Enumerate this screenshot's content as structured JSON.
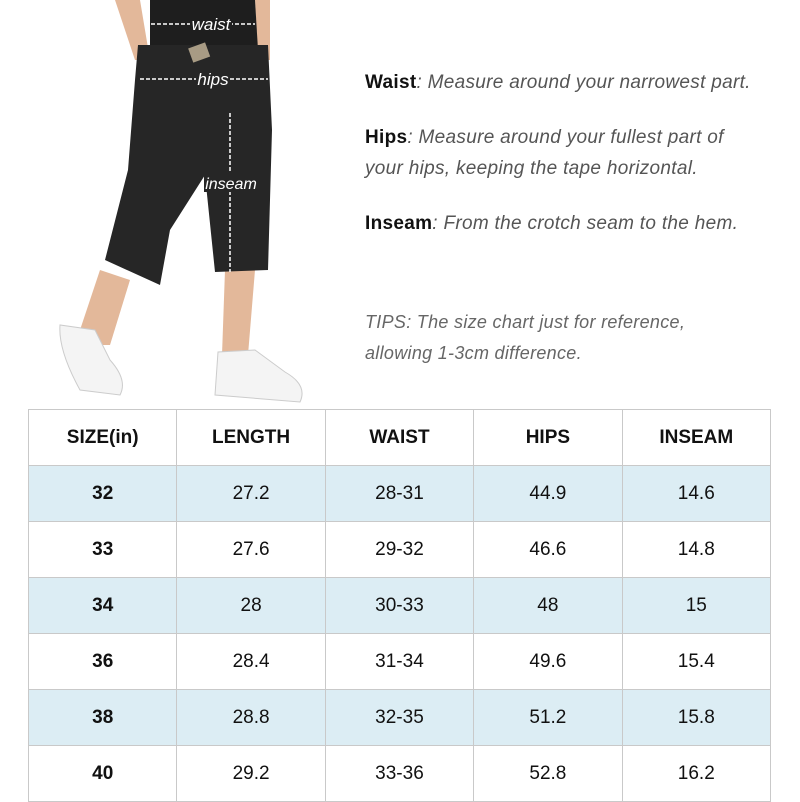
{
  "photo": {
    "labels": {
      "waist": "waist",
      "hips": "hips",
      "inseam": "inseam"
    }
  },
  "notes": [
    {
      "term": "Waist",
      "sep": ":",
      "text": " Measure around your narrowest part."
    },
    {
      "term": "Hips",
      "sep": ":",
      "text": " Measure around your fullest part of",
      "text2": "your hips, keeping the tape horizontal."
    },
    {
      "term": "Inseam",
      "sep": ":",
      "text": " From the crotch seam to the hem."
    }
  ],
  "tips": {
    "line1": "TIPS: The size chart just for reference,",
    "line2": "allowing 1-3cm difference."
  },
  "table": {
    "headers": [
      "SIZE(in)",
      "LENGTH",
      "WAIST",
      "HIPS",
      "INSEAM"
    ],
    "rows": [
      [
        "32",
        "27.2",
        "28-31",
        "44.9",
        "14.6"
      ],
      [
        "33",
        "27.6",
        "29-32",
        "46.6",
        "14.8"
      ],
      [
        "34",
        "28",
        "30-33",
        "48",
        "15"
      ],
      [
        "36",
        "28.4",
        "31-34",
        "49.6",
        "15.4"
      ],
      [
        "38",
        "28.8",
        "32-35",
        "51.2",
        "15.8"
      ],
      [
        "40",
        "29.2",
        "33-36",
        "52.8",
        "16.2"
      ]
    ],
    "row_highlight_color": "#dcedf4"
  }
}
